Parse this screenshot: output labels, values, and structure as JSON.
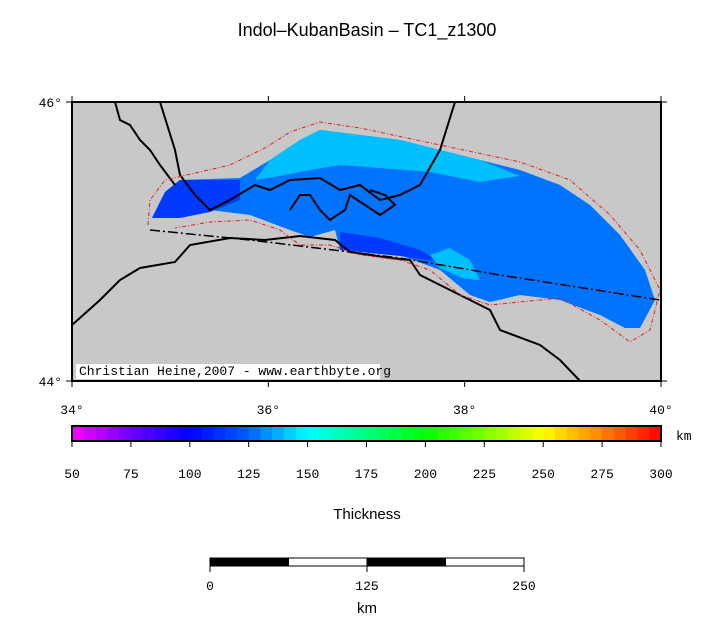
{
  "title": "Indol–KubanBasin – TC1_z1300",
  "map": {
    "lonlim": [
      34,
      40
    ],
    "latlim": [
      44,
      46
    ],
    "lonticks": [
      {
        "value": 34,
        "label": "34°"
      },
      {
        "value": 36,
        "label": "36°"
      },
      {
        "value": 38,
        "label": "38°"
      },
      {
        "value": 40,
        "label": "40°"
      }
    ],
    "latticks": [
      {
        "value": 44,
        "label": "44°"
      },
      {
        "value": 46,
        "label": "46°"
      }
    ],
    "credit": "Christian Heine,2007 - www.earthbyte.org",
    "background": "#c8c8c8",
    "zones": [
      {
        "value": 128
      },
      {
        "value": 140
      },
      {
        "value": 115
      },
      {
        "value": 115
      },
      {
        "value": 140
      }
    ]
  },
  "colorbar": {
    "label": "Thickness",
    "unit": "km",
    "range": [
      50,
      300
    ],
    "ticks": [
      50,
      75,
      100,
      125,
      150,
      175,
      200,
      225,
      250,
      275,
      300
    ],
    "colors": [
      "#ff00ff",
      "#6a00ff",
      "#0000ff",
      "#0060ff",
      "#00ffff",
      "#00ff80",
      "#00ff00",
      "#80ff00",
      "#ffff00",
      "#ff8000",
      "#ff0000"
    ],
    "step": 5
  },
  "scalebar": {
    "range": [
      0,
      250
    ],
    "ticks": [
      0,
      125,
      250
    ],
    "unit": "km"
  }
}
